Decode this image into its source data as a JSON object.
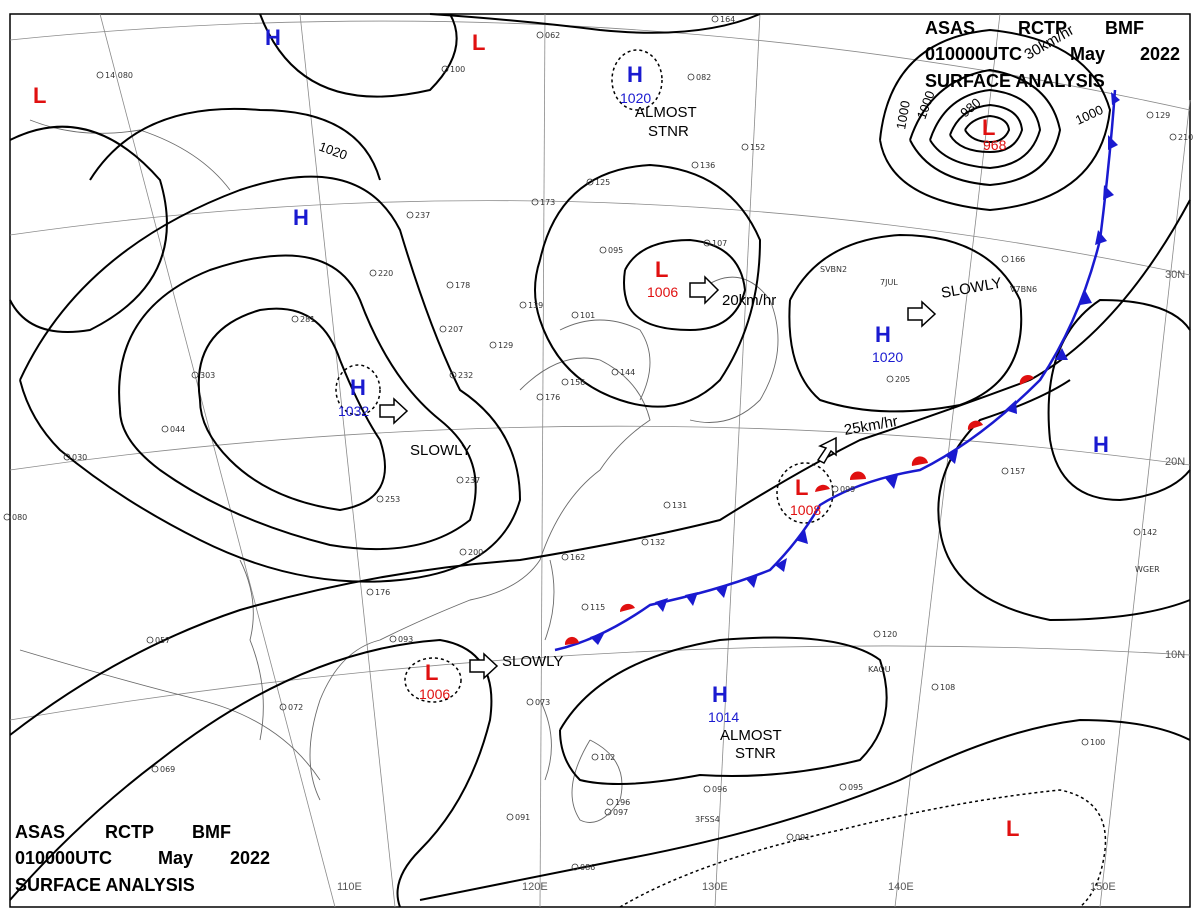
{
  "header": {
    "line1_parts": [
      "ASAS",
      "RCTP",
      "BMF"
    ],
    "line2_parts": [
      "010000UTC",
      "May",
      "2022"
    ],
    "line3": "SURFACE ANALYSIS"
  },
  "grid": {
    "lon_labels": [
      "110E",
      "120E",
      "130E",
      "140E",
      "150E"
    ],
    "lat_labels": [
      "30N",
      "20N",
      "10N"
    ]
  },
  "isobar_labels": [
    "1020",
    "1000",
    "1000",
    "1000",
    "980"
  ],
  "pressure_systems": [
    {
      "kind": "H",
      "value": ""
    },
    {
      "kind": "L",
      "value": ""
    },
    {
      "kind": "L",
      "value": ""
    },
    {
      "kind": "H",
      "value": ""
    },
    {
      "kind": "H",
      "value": "1020"
    },
    {
      "kind": "L",
      "value": "968"
    },
    {
      "kind": "H",
      "value": "1032"
    },
    {
      "kind": "L",
      "value": "1006"
    },
    {
      "kind": "H",
      "value": "1020"
    },
    {
      "kind": "L",
      "value": "1008"
    },
    {
      "kind": "H",
      "value": ""
    },
    {
      "kind": "L",
      "value": "1006"
    },
    {
      "kind": "H",
      "value": "1014"
    },
    {
      "kind": "L",
      "value": ""
    }
  ],
  "motion_labels": {
    "slowly_west": "SLOWLY",
    "slowly_east": "SLOWLY",
    "slowly_south": "SLOWLY",
    "speed_central": "20km/hr",
    "speed_front": "25km/hr",
    "speed_north": "30km/hr",
    "almost_stnr_north_1": "ALMOST",
    "almost_stnr_north_2": "STNR",
    "almost_stnr_south_1": "ALMOST",
    "almost_stnr_south_2": "STNR"
  },
  "station_plots": [
    "14 080",
    "100",
    "062",
    "164",
    "237",
    "178",
    "220",
    "281",
    "207",
    "232",
    "303",
    "093",
    "072",
    "069",
    "057",
    "030",
    "080",
    "044",
    "125",
    "173",
    "095",
    "107",
    "139",
    "101",
    "129",
    "144",
    "176",
    "131",
    "132",
    "162",
    "115",
    "237",
    "253",
    "200",
    "099",
    "166",
    "205",
    "157",
    "142",
    "120",
    "108",
    "096",
    "091",
    "097",
    "102",
    "086",
    "091",
    "095",
    "100",
    "152",
    "136",
    "082",
    "129",
    "210",
    "073",
    "196",
    "156",
    "176"
  ],
  "station_ids": [
    "SVBN2",
    "7JUL",
    "V7BN6",
    "WGER",
    "KAOU",
    "3FSS4"
  ],
  "colors": {
    "high": "#1a1ad0",
    "low": "#e01010",
    "cold_front": "#1a1ad0",
    "warm_front": "#e01010",
    "isobar": "#000000",
    "coast": "#6a6a6a",
    "grid": "#8a8a8a"
  }
}
